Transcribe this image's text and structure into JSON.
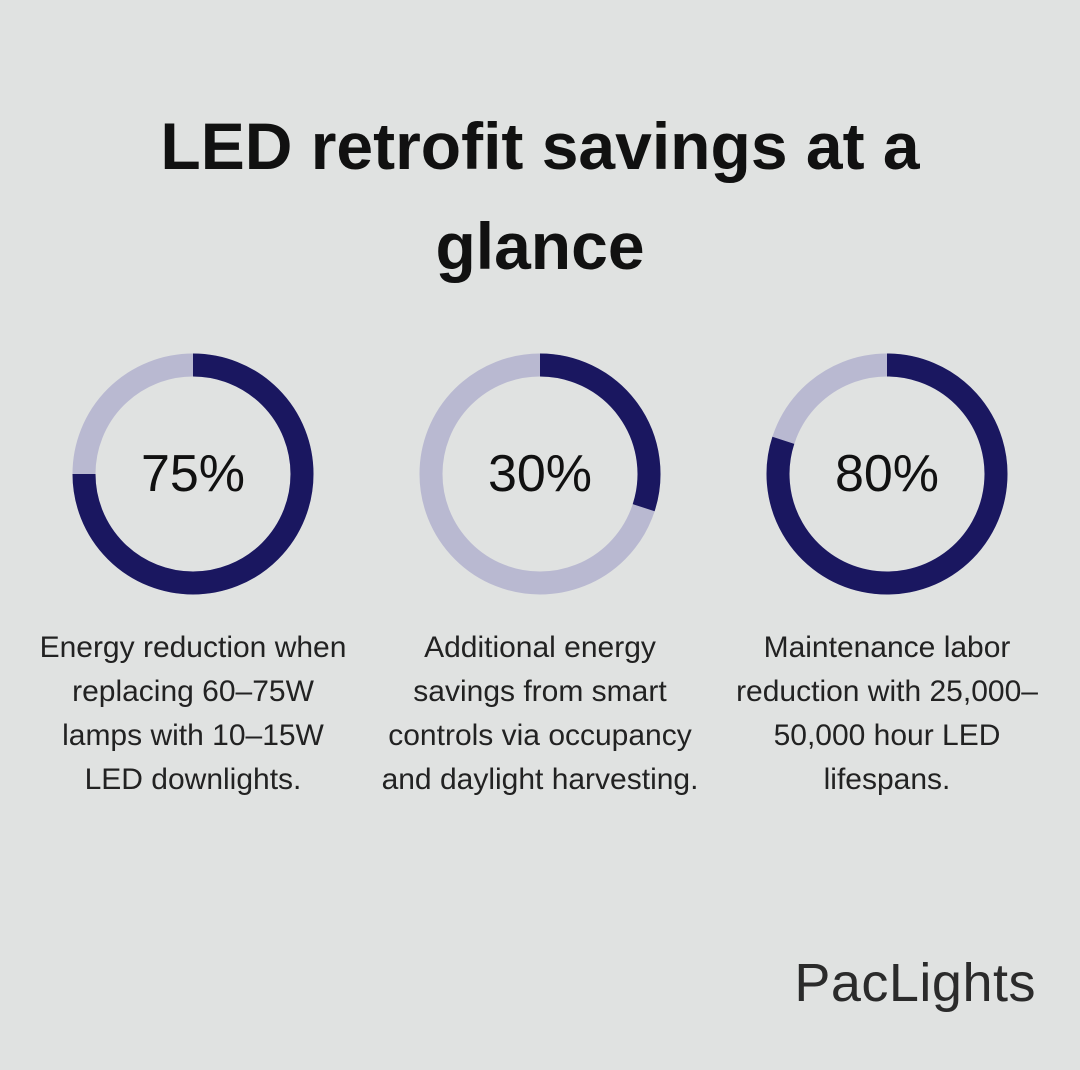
{
  "title": "LED retrofit savings at a glance",
  "chart_data": [
    {
      "type": "donut",
      "values": [
        75
      ],
      "value_labels": [
        "75%"
      ],
      "color": "#1a1760",
      "track_color": "#b9b9d1",
      "caption": "Energy reduction when replacing 60–75W lamps with 10–15W LED downlights."
    },
    {
      "type": "donut",
      "values": [
        30
      ],
      "value_labels": [
        "30%"
      ],
      "color": "#1a1760",
      "track_color": "#b9b9d1",
      "caption": "Additional energy savings from smart controls via occupancy and daylight harvesting."
    },
    {
      "type": "donut",
      "values": [
        80
      ],
      "value_labels": [
        "80%"
      ],
      "color": "#1a1760",
      "track_color": "#b9b9d1",
      "caption": "Maintenance labor reduction with 25,000–50,000 hour LED lifespans."
    }
  ],
  "brand": "PacLights"
}
